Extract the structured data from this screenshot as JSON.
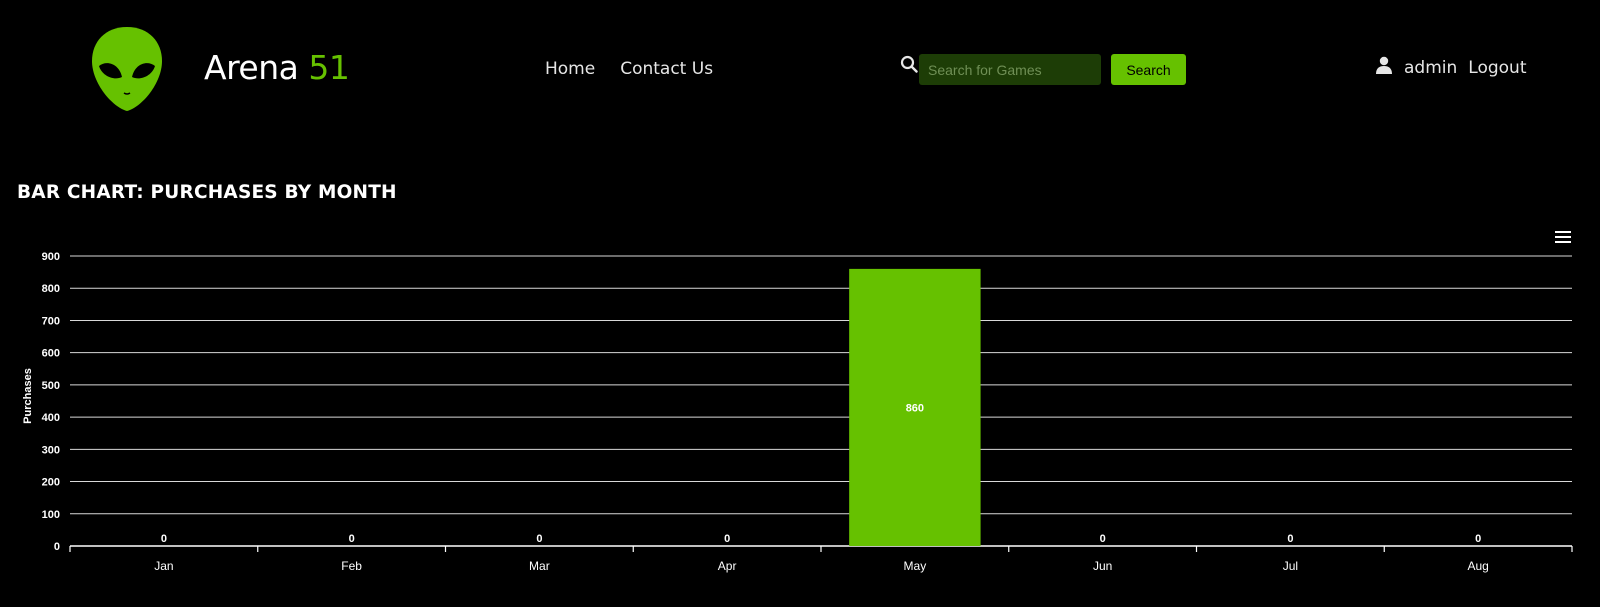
{
  "header": {
    "brand_name": "Arena",
    "brand_accent": "51",
    "nav": {
      "home": "Home",
      "contact": "Contact Us"
    },
    "search": {
      "placeholder": "Search for Games",
      "button_label": "Search"
    },
    "user": {
      "name": "admin",
      "logout_label": "Logout"
    },
    "icons": {
      "logo": "alien-head-icon",
      "search": "search-icon",
      "user": "user-icon",
      "menu": "hamburger-menu-icon"
    }
  },
  "chart_title": "BAR CHART: PURCHASES BY MONTH",
  "colors": {
    "accent": "#66c100",
    "background": "#000000",
    "search_field": "#1d3d06",
    "gridline": "#ffffff"
  },
  "chart_data": {
    "type": "bar",
    "categories": [
      "Jan",
      "Feb",
      "Mar",
      "Apr",
      "May",
      "Jun",
      "Jul",
      "Aug"
    ],
    "values": [
      0,
      0,
      0,
      0,
      860,
      0,
      0,
      0
    ],
    "data_labels": [
      "0",
      "0",
      "0",
      "0",
      "860",
      "0",
      "0",
      "0"
    ],
    "ylabel": "Purchases",
    "xlabel": "",
    "ylim": [
      0,
      900
    ],
    "yticks": [
      0,
      100,
      200,
      300,
      400,
      500,
      600,
      700,
      800,
      900
    ],
    "grid": true,
    "legend": "none",
    "bar_color": "#66c100"
  }
}
